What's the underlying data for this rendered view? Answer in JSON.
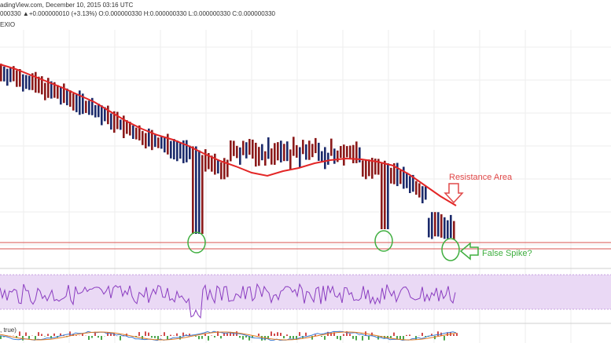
{
  "header": {
    "line1": "adingView.com, December 10, 2015 03:16 UTC",
    "line2": "000330 ▲+0.000000010 (+3.13%) O:0.000000330 H:0.000000330 L:0.000000330 C:0.000000330",
    "symbol_suffix": "EXIO"
  },
  "annotations": {
    "resistance": "Resistance Area",
    "false_spike": "False Spike?"
  },
  "indicator_label": ", true)",
  "colors": {
    "up_candle": "#1b2a6b",
    "down_candle": "#8b1a1a",
    "ma_line": "#e32626",
    "support_line": "#d9534f",
    "annotation_red": "#e04848",
    "annotation_green": "#3fae3f",
    "rsi_band": "#ead9f5",
    "rsi_line": "#8a3cc0"
  },
  "chart_data": {
    "type": "line",
    "title": "",
    "series": [],
    "ma_trend": [
      82,
      88,
      96,
      104,
      112,
      121,
      130,
      142,
      154,
      164,
      172,
      178,
      186,
      196,
      205,
      212,
      220,
      224,
      218,
      214,
      208,
      204,
      202,
      203,
      206,
      211,
      222,
      236,
      250,
      262
    ],
    "support_level": "horizontal band near lows",
    "markers": [
      "circle at first low",
      "circle at second low",
      "circle at false spike"
    ]
  }
}
